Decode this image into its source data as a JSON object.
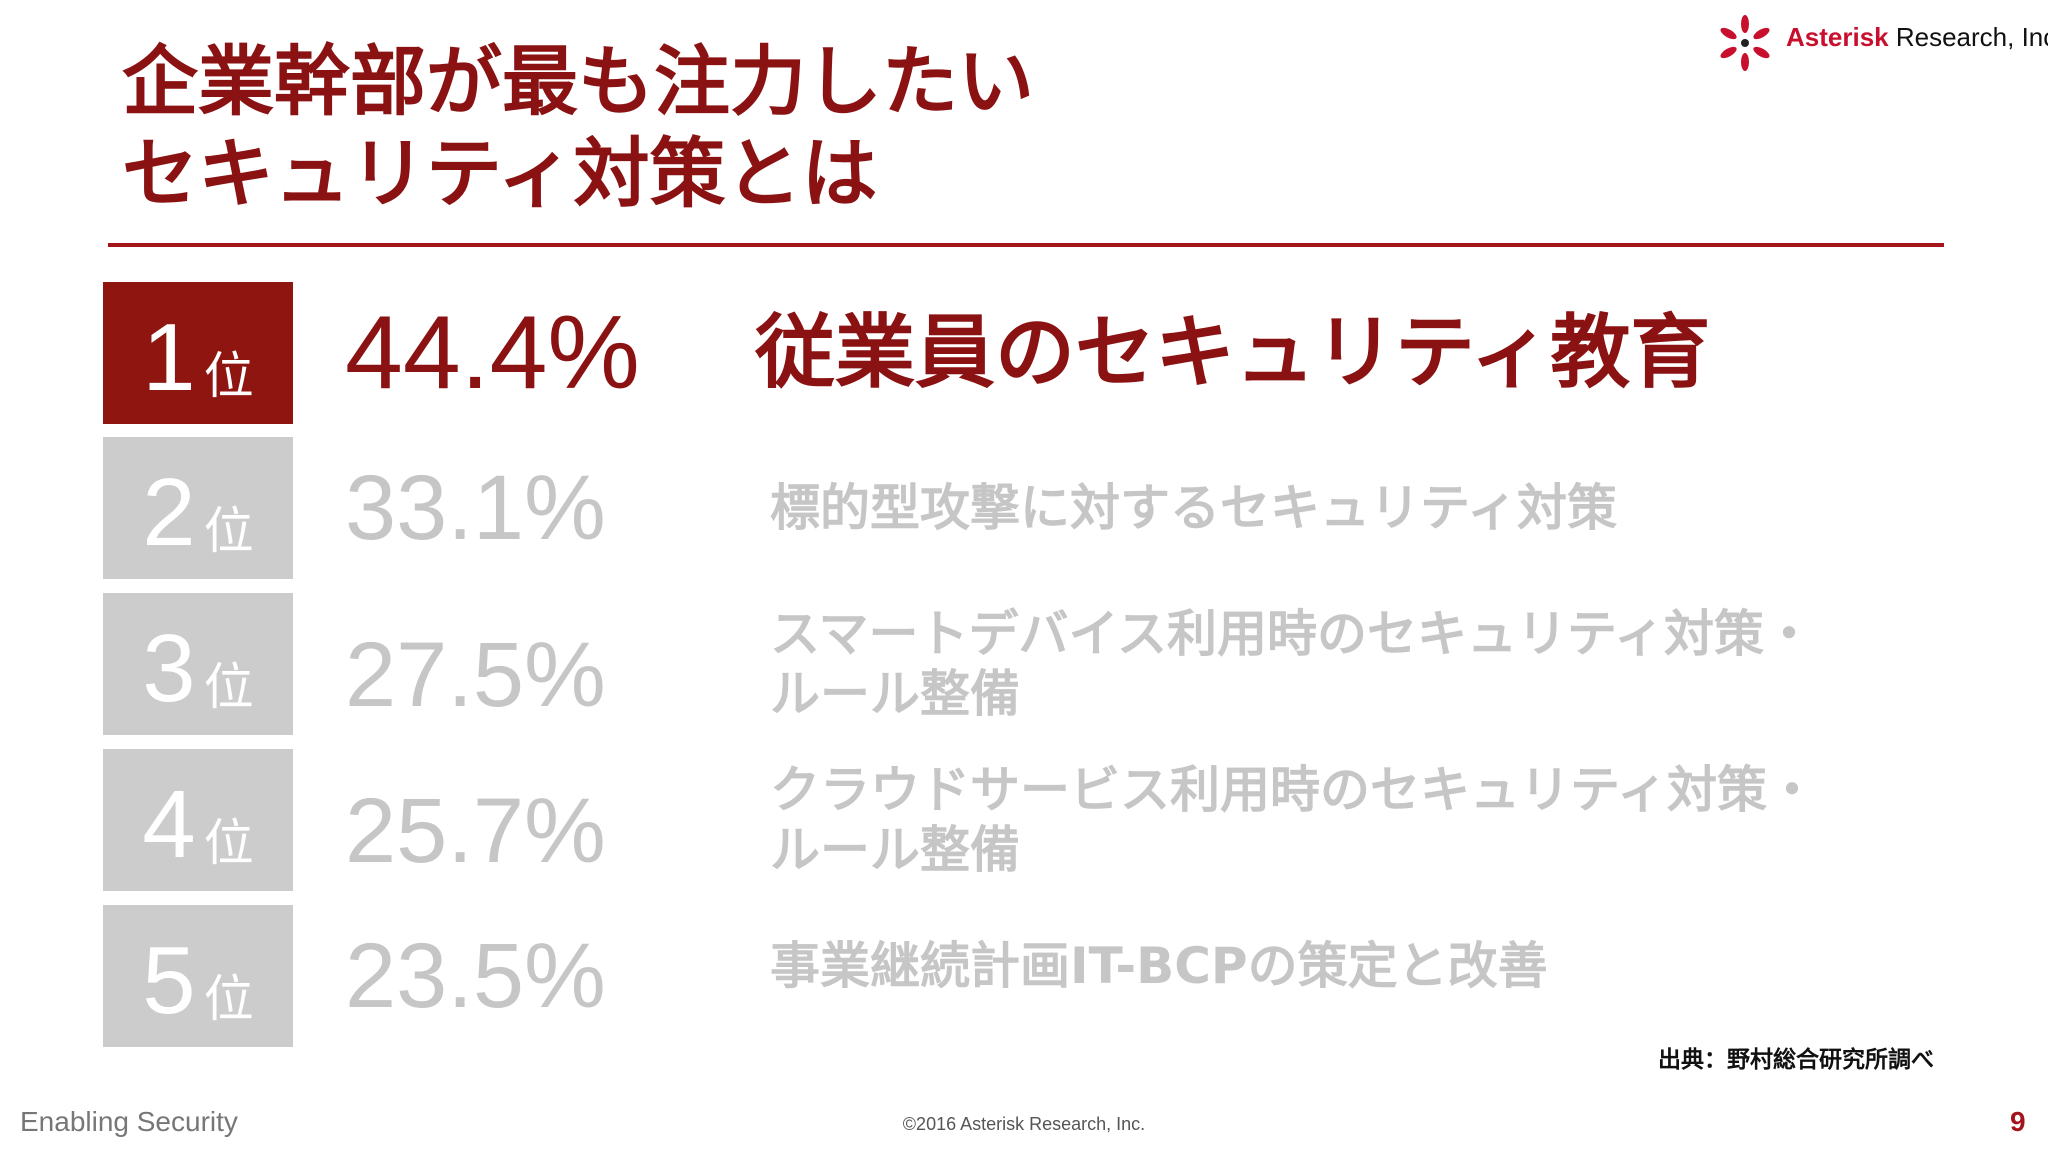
{
  "title": {
    "line1": "企業幹部が最も注力したい",
    "line2": "セキュリティ対策とは"
  },
  "logo": {
    "brand": "Asterisk",
    "rest": " Research, Inc."
  },
  "ranking": [
    {
      "rank": "1",
      "unit": "位",
      "percent": "44.4%",
      "lines": [
        "従業員のセキュリティ教育"
      ]
    },
    {
      "rank": "2",
      "unit": "位",
      "percent": "33.1%",
      "lines": [
        "標的型攻撃に対するセキュリティ対策"
      ]
    },
    {
      "rank": "3",
      "unit": "位",
      "percent": "27.5%",
      "lines": [
        "スマートデバイス利用時のセキュリティ対策・",
        "ルール整備"
      ]
    },
    {
      "rank": "4",
      "unit": "位",
      "percent": "25.7%",
      "lines": [
        "クラウドサービス利用時のセキュリティ対策・",
        "ルール整備"
      ]
    },
    {
      "rank": "5",
      "unit": "位",
      "percent": "23.5%",
      "lines": [
        "事業継続計画IT-BCPの策定と改善"
      ]
    }
  ],
  "source": "出典：野村総合研究所調べ",
  "footer": {
    "left": "Enabling Security",
    "center": "©2016 Asterisk Research, Inc.",
    "page": "9"
  },
  "colors": {
    "accent": "#8b1212",
    "inactive_box": "#cccccc",
    "inactive_text": "#c6c6c6"
  }
}
